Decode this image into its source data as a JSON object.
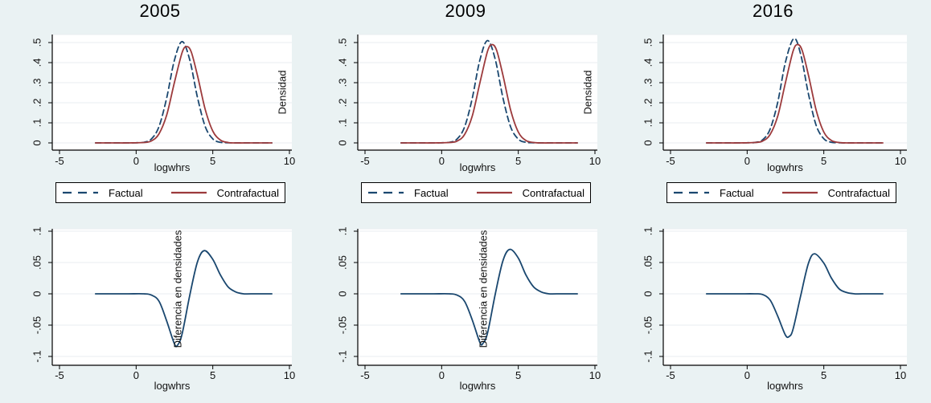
{
  "colors": {
    "background": "#eaf2f3",
    "plot_bg": "#ffffff",
    "grid": "#e9eef1",
    "axis": "#000000",
    "navy": "#1a476f",
    "maroon": "#9c3a3c"
  },
  "legend": {
    "factual_label": "Factual",
    "contrafactual_label": "Contrafactual"
  },
  "chart_data": [
    {
      "type": "line",
      "row": "density",
      "year": "2005",
      "title": "2005",
      "xlabel": "logwhrs",
      "ylabel": "Densidad",
      "xticks": [
        -5,
        0,
        5,
        10
      ],
      "xtick_labels": [
        "-5",
        "0",
        "5",
        "10"
      ],
      "yticks": [
        0,
        0.1,
        0.2,
        0.3,
        0.4,
        0.5
      ],
      "ytick_labels": [
        "0",
        ".1",
        ".2",
        ".3",
        ".4",
        ".5"
      ],
      "xlim": [
        -5.5,
        10.4
      ],
      "ylim": [
        -0.036,
        0.54
      ],
      "grid": true,
      "legend_position": "below",
      "series": [
        {
          "name": "Factual",
          "line": "dashed",
          "color": "#1a476f",
          "points": [
            [
              -2.65,
              0
            ],
            [
              -1.5,
              0
            ],
            [
              -0.5,
              0
            ],
            [
              0,
              0.001
            ],
            [
              0.5,
              0.003
            ],
            [
              1,
              0.02
            ],
            [
              1.5,
              0.083
            ],
            [
              2,
              0.227
            ],
            [
              2.5,
              0.413
            ],
            [
              3,
              0.505
            ],
            [
              3.5,
              0.413
            ],
            [
              4,
              0.227
            ],
            [
              4.5,
              0.083
            ],
            [
              5,
              0.02
            ],
            [
              5.5,
              0.003
            ],
            [
              6,
              0.001
            ],
            [
              6.5,
              0
            ],
            [
              7.5,
              0
            ],
            [
              8.85,
              0
            ]
          ]
        },
        {
          "name": "Contrafactual",
          "line": "solid",
          "color": "#9c3a3c",
          "points": [
            [
              -2.65,
              0
            ],
            [
              -1.5,
              0
            ],
            [
              -0.5,
              0
            ],
            [
              0.5,
              0.002
            ],
            [
              1,
              0.01
            ],
            [
              1.5,
              0.046
            ],
            [
              2,
              0.141
            ],
            [
              2.5,
              0.302
            ],
            [
              3,
              0.45
            ],
            [
              3.3,
              0.48
            ],
            [
              3.6,
              0.452
            ],
            [
              4,
              0.336
            ],
            [
              4.5,
              0.169
            ],
            [
              5,
              0.059
            ],
            [
              5.5,
              0.014
            ],
            [
              6,
              0.002
            ],
            [
              6.5,
              0
            ],
            [
              7.5,
              0
            ],
            [
              8.85,
              0
            ]
          ]
        }
      ]
    },
    {
      "type": "line",
      "row": "density",
      "year": "2009",
      "title": "2009",
      "xlabel": "logwhrs",
      "ylabel": "Densidad",
      "xticks": [
        -5,
        0,
        5,
        10
      ],
      "xtick_labels": [
        "-5",
        "0",
        "5",
        "10"
      ],
      "yticks": [
        0,
        0.1,
        0.2,
        0.3,
        0.4,
        0.5
      ],
      "ytick_labels": [
        "0",
        ".1",
        ".2",
        ".3",
        ".4",
        ".5"
      ],
      "xlim": [
        -5.5,
        10.4
      ],
      "ylim": [
        -0.036,
        0.54
      ],
      "grid": true,
      "legend_position": "below",
      "series": [
        {
          "name": "Factual",
          "line": "dashed",
          "color": "#1a476f",
          "points": [
            [
              -2.65,
              0
            ],
            [
              -1.5,
              0
            ],
            [
              -0.5,
              0
            ],
            [
              0,
              0.001
            ],
            [
              0.5,
              0.003
            ],
            [
              1,
              0.019
            ],
            [
              1.5,
              0.08
            ],
            [
              2,
              0.224
            ],
            [
              2.5,
              0.415
            ],
            [
              3,
              0.51
            ],
            [
              3.5,
              0.415
            ],
            [
              4,
              0.224
            ],
            [
              4.5,
              0.08
            ],
            [
              5,
              0.019
            ],
            [
              5.5,
              0.003
            ],
            [
              6,
              0.001
            ],
            [
              6.5,
              0
            ],
            [
              7.5,
              0
            ],
            [
              8.85,
              0
            ]
          ]
        },
        {
          "name": "Contrafactual",
          "line": "solid",
          "color": "#9c3a3c",
          "points": [
            [
              -2.65,
              0
            ],
            [
              -1.5,
              0
            ],
            [
              -0.5,
              0
            ],
            [
              0.5,
              0.002
            ],
            [
              1,
              0.009
            ],
            [
              1.5,
              0.042
            ],
            [
              2,
              0.135
            ],
            [
              2.5,
              0.301
            ],
            [
              3,
              0.458
            ],
            [
              3.3,
              0.49
            ],
            [
              3.6,
              0.458
            ],
            [
              4,
              0.337
            ],
            [
              4.5,
              0.164
            ],
            [
              5,
              0.054
            ],
            [
              5.5,
              0.012
            ],
            [
              6,
              0.002
            ],
            [
              6.5,
              0
            ],
            [
              7.5,
              0
            ],
            [
              8.85,
              0
            ]
          ]
        }
      ]
    },
    {
      "type": "line",
      "row": "density",
      "year": "2016",
      "title": "2016",
      "xlabel": "logwhrs",
      "ylabel": null,
      "xticks": [
        -5,
        0,
        5,
        10
      ],
      "xtick_labels": [
        "-5",
        "0",
        "5",
        "10"
      ],
      "yticks": [
        0,
        0.1,
        0.2,
        0.3,
        0.4,
        0.5
      ],
      "ytick_labels": [
        "0",
        ".1",
        ".2",
        ".3",
        ".4",
        ".5"
      ],
      "xlim": [
        -5.5,
        10.4
      ],
      "ylim": [
        -0.036,
        0.54
      ],
      "grid": true,
      "legend_position": "below",
      "series": [
        {
          "name": "Factual",
          "line": "dashed",
          "color": "#1a476f",
          "points": [
            [
              -2.65,
              0
            ],
            [
              -1.5,
              0
            ],
            [
              -0.5,
              0
            ],
            [
              0,
              0.001
            ],
            [
              0.5,
              0.002
            ],
            [
              1,
              0.015
            ],
            [
              1.5,
              0.069
            ],
            [
              2,
              0.205
            ],
            [
              2.5,
              0.403
            ],
            [
              3.05,
              0.52
            ],
            [
              3.5,
              0.438
            ],
            [
              4,
              0.243
            ],
            [
              4.5,
              0.088
            ],
            [
              5,
              0.021
            ],
            [
              5.5,
              0.003
            ],
            [
              6,
              0.001
            ],
            [
              6.5,
              0
            ],
            [
              7.5,
              0
            ],
            [
              8.85,
              0
            ]
          ]
        },
        {
          "name": "Contrafactual",
          "line": "solid",
          "color": "#9c3a3c",
          "points": [
            [
              -2.65,
              0
            ],
            [
              -1.5,
              0
            ],
            [
              -0.5,
              0
            ],
            [
              0.5,
              0.002
            ],
            [
              1,
              0.009
            ],
            [
              1.5,
              0.042
            ],
            [
              2,
              0.135
            ],
            [
              2.5,
              0.301
            ],
            [
              3,
              0.458
            ],
            [
              3.3,
              0.49
            ],
            [
              3.6,
              0.458
            ],
            [
              4,
              0.337
            ],
            [
              4.5,
              0.164
            ],
            [
              5,
              0.054
            ],
            [
              5.5,
              0.012
            ],
            [
              6,
              0.002
            ],
            [
              6.5,
              0
            ],
            [
              7.5,
              0
            ],
            [
              8.85,
              0
            ]
          ]
        }
      ]
    },
    {
      "type": "line",
      "row": "difference",
      "year": "2005",
      "title": "",
      "xlabel": "logwhrs",
      "ylabel": "Diferencia en densidades",
      "xticks": [
        -5,
        0,
        5,
        10
      ],
      "xtick_labels": [
        "-5",
        "0",
        "5",
        "10"
      ],
      "yticks": [
        -0.1,
        -0.05,
        0,
        0.05,
        0.1
      ],
      "ytick_labels": [
        "-.1",
        "-.05",
        "0",
        ".05",
        ".1"
      ],
      "xlim": [
        -5.5,
        10.4
      ],
      "ylim": [
        -0.115,
        0.116
      ],
      "grid": true,
      "legend_position": "none",
      "series": [
        {
          "name": "Diferencia",
          "line": "solid",
          "color": "#1a476f",
          "points": [
            [
              -2.65,
              0
            ],
            [
              -1.5,
              0
            ],
            [
              -0.5,
              0
            ],
            [
              0.5,
              0
            ],
            [
              1,
              -0.002
            ],
            [
              1.5,
              -0.012
            ],
            [
              2,
              -0.044
            ],
            [
              2.5,
              -0.08
            ],
            [
              2.7,
              -0.082
            ],
            [
              3,
              -0.064
            ],
            [
              3.5,
              -0.002
            ],
            [
              4,
              0.051
            ],
            [
              4.45,
              0.069
            ],
            [
              5,
              0.055
            ],
            [
              5.5,
              0.03
            ],
            [
              6,
              0.011
            ],
            [
              6.5,
              0.003
            ],
            [
              7,
              0
            ],
            [
              7.5,
              0
            ],
            [
              8.85,
              0
            ]
          ]
        }
      ]
    },
    {
      "type": "line",
      "row": "difference",
      "year": "2009",
      "title": "",
      "xlabel": "logwhrs",
      "ylabel": "Diferencia en densidades",
      "xticks": [
        -5,
        0,
        5,
        10
      ],
      "xtick_labels": [
        "-5",
        "0",
        "5",
        "10"
      ],
      "yticks": [
        -0.1,
        -0.05,
        0,
        0.05,
        0.1
      ],
      "ytick_labels": [
        "-.1",
        "-.05",
        "0",
        ".05",
        ".1"
      ],
      "xlim": [
        -5.5,
        10.4
      ],
      "ylim": [
        -0.115,
        0.116
      ],
      "grid": true,
      "legend_position": "none",
      "series": [
        {
          "name": "Diferencia",
          "line": "solid",
          "color": "#1a476f",
          "points": [
            [
              -2.65,
              0
            ],
            [
              -1.5,
              0
            ],
            [
              -0.5,
              0
            ],
            [
              0.5,
              0
            ],
            [
              1,
              -0.002
            ],
            [
              1.5,
              -0.012
            ],
            [
              2,
              -0.042
            ],
            [
              2.5,
              -0.078
            ],
            [
              2.7,
              -0.079
            ],
            [
              3,
              -0.062
            ],
            [
              3.5,
              0
            ],
            [
              4,
              0.053
            ],
            [
              4.45,
              0.071
            ],
            [
              5,
              0.057
            ],
            [
              5.5,
              0.03
            ],
            [
              6,
              0.011
            ],
            [
              6.5,
              0.003
            ],
            [
              7,
              0
            ],
            [
              7.5,
              0
            ],
            [
              8.85,
              0
            ]
          ]
        }
      ]
    },
    {
      "type": "line",
      "row": "difference",
      "year": "2016",
      "title": "",
      "xlabel": "logwhrs",
      "ylabel": null,
      "xticks": [
        -5,
        0,
        5,
        10
      ],
      "xtick_labels": [
        "-5",
        "0",
        "5",
        "10"
      ],
      "yticks": [
        -0.1,
        -0.05,
        0,
        0.05,
        0.1
      ],
      "ytick_labels": [
        "-.1",
        "-.05",
        "0",
        ".05",
        ".1"
      ],
      "xlim": [
        -5.5,
        10.4
      ],
      "ylim": [
        -0.115,
        0.116
      ],
      "grid": true,
      "legend_position": "none",
      "series": [
        {
          "name": "Diferencia",
          "line": "solid",
          "color": "#1a476f",
          "points": [
            [
              -2.65,
              0
            ],
            [
              -1.5,
              0
            ],
            [
              -0.5,
              0
            ],
            [
              0.5,
              0
            ],
            [
              1,
              -0.001
            ],
            [
              1.5,
              -0.01
            ],
            [
              2,
              -0.036
            ],
            [
              2.5,
              -0.066
            ],
            [
              2.75,
              -0.068
            ],
            [
              3,
              -0.056
            ],
            [
              3.5,
              -0.002
            ],
            [
              4,
              0.049
            ],
            [
              4.4,
              0.064
            ],
            [
              5,
              0.049
            ],
            [
              5.5,
              0.025
            ],
            [
              6,
              0.008
            ],
            [
              6.5,
              0.002
            ],
            [
              7,
              0
            ],
            [
              7.5,
              0
            ],
            [
              8.85,
              0
            ]
          ]
        }
      ]
    }
  ]
}
